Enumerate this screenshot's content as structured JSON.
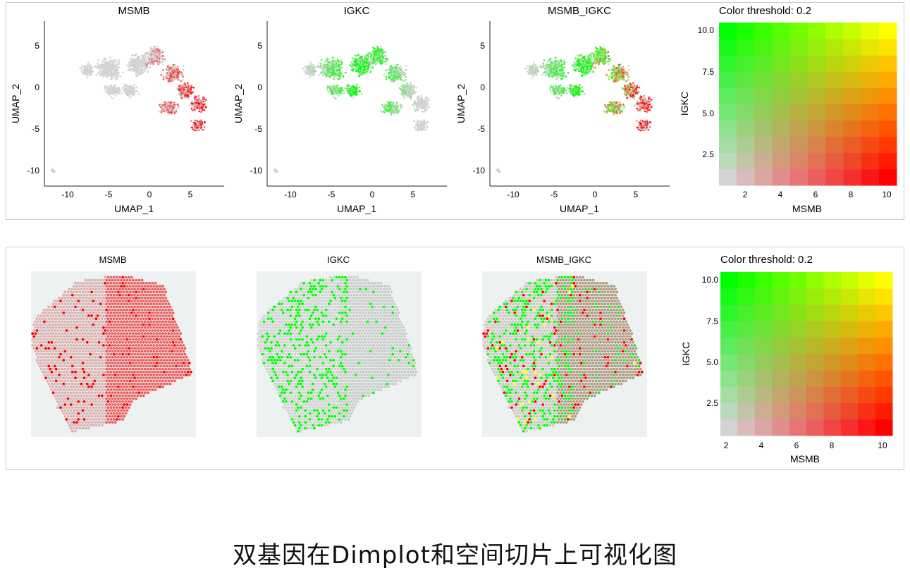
{
  "caption": "双基因在Dimplot和空间切片上可视化图",
  "colors": {
    "low": "#d3d3d3",
    "gene1": "#ff0000",
    "gene2": "#00ff00",
    "both": "#ffff00",
    "frame": "#cccccc"
  },
  "chart_data": [
    {
      "type": "scatter",
      "title": "MSMB",
      "xlabel": "UMAP_1",
      "ylabel": "UMAP_2",
      "xlim": [
        -12,
        9
      ],
      "ylim": [
        -12,
        7
      ],
      "x_ticks": [
        "-10",
        "-5",
        "0",
        "5"
      ],
      "y_ticks": [
        "5",
        "0",
        "-5",
        "-10"
      ],
      "feature": "MSMB",
      "color_scale": [
        "#d3d3d3",
        "#ff0000"
      ]
    },
    {
      "type": "scatter",
      "title": "IGKC",
      "xlabel": "UMAP_1",
      "ylabel": "UMAP_2",
      "xlim": [
        -12,
        9
      ],
      "ylim": [
        -12,
        7
      ],
      "x_ticks": [
        "-10",
        "-5",
        "0",
        "5"
      ],
      "y_ticks": [
        "5",
        "0",
        "-5",
        "-10"
      ],
      "feature": "IGKC",
      "color_scale": [
        "#d3d3d3",
        "#00ff00"
      ]
    },
    {
      "type": "scatter",
      "title": "MSMB_IGKC",
      "xlabel": "UMAP_1",
      "ylabel": "UMAP_2",
      "xlim": [
        -12,
        9
      ],
      "ylim": [
        -12,
        7
      ],
      "x_ticks": [
        "-10",
        "-5",
        "0",
        "5"
      ],
      "y_ticks": [
        "5",
        "0",
        "-5",
        "-10"
      ],
      "feature": "MSMB_IGKC",
      "color_scale": [
        "#d3d3d3",
        "#ff0000",
        "#00ff00",
        "#ffff00"
      ]
    },
    {
      "type": "heatmap",
      "title": "Color threshold: 0.2",
      "xlabel": "MSMB",
      "ylabel": "IGKC",
      "xlim": [
        0.5,
        10.5
      ],
      "ylim": [
        0.5,
        10.5
      ],
      "x_ticks": [
        "2",
        "4",
        "6",
        "8",
        "10"
      ],
      "y_ticks": [
        "10.0",
        "7.5",
        "5.0",
        "2.5"
      ],
      "x": [
        1,
        2,
        3,
        4,
        5,
        6,
        7,
        8,
        9,
        10
      ],
      "y": [
        1,
        2,
        3,
        4,
        5,
        6,
        7,
        8,
        9,
        10
      ],
      "corners": {
        "low_low": "#d3d3d3",
        "high_x": "#ff0000",
        "high_y": "#00ff00",
        "high_both": "#ffff00"
      }
    },
    {
      "type": "spatial",
      "title": "MSMB",
      "feature": "MSMB",
      "color_scale": [
        "#d3d3d3",
        "#ff0000"
      ]
    },
    {
      "type": "spatial",
      "title": "IGKC",
      "feature": "IGKC",
      "color_scale": [
        "#d3d3d3",
        "#00ff00"
      ]
    },
    {
      "type": "spatial",
      "title": "MSMB_IGKC",
      "feature": "MSMB_IGKC",
      "color_scale": [
        "#d3d3d3",
        "#ff0000",
        "#00ff00",
        "#ffff00"
      ]
    },
    {
      "type": "heatmap",
      "title": "Color threshold: 0.2",
      "xlabel": "MSMB",
      "ylabel": "IGKC",
      "xlim": [
        0.5,
        10.5
      ],
      "ylim": [
        0.5,
        10.5
      ],
      "x_ticks": [
        "2",
        "4",
        "6",
        "8",
        "10"
      ],
      "y_ticks": [
        "10.0",
        "7.5",
        "5.0",
        "2.5"
      ],
      "x": [
        1,
        2,
        3,
        4,
        5,
        6,
        7,
        8,
        9,
        10
      ],
      "y": [
        1,
        2,
        3,
        4,
        5,
        6,
        7,
        8,
        9,
        10
      ],
      "corners": {
        "low_low": "#d3d3d3",
        "high_x": "#ff0000",
        "high_y": "#00ff00",
        "high_both": "#ffff00"
      }
    }
  ]
}
